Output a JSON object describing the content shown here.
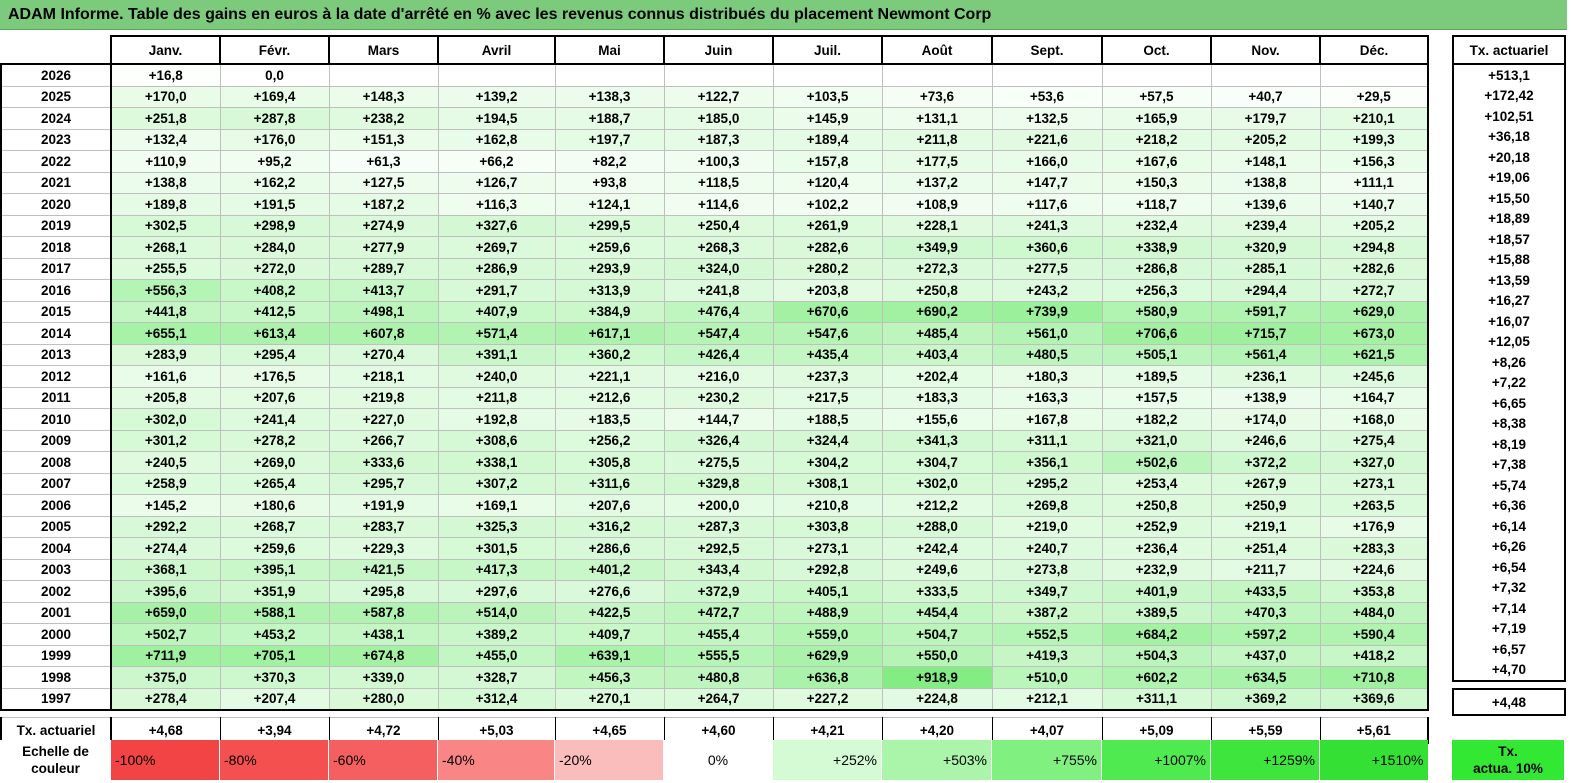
{
  "title": "ADAM Informe. Table des gains en euros à la date d'arrêté en % avec les revenus connus distribués du placement Newmont Corp",
  "months": [
    "Janv.",
    "Févr.",
    "Mars",
    "Avril",
    "Mai",
    "Juin",
    "Juil.",
    "Août",
    "Sept.",
    "Oct.",
    "Nov.",
    "Déc."
  ],
  "tx_header": "Tx. actuariel",
  "rows": [
    {
      "year": "2026",
      "cells": [
        "+16,8",
        "0,0",
        "",
        "",
        "",
        "",
        "",
        "",
        "",
        "",
        "",
        ""
      ],
      "tx": "+513,1"
    },
    {
      "year": "2025",
      "cells": [
        "+170,0",
        "+169,4",
        "+148,3",
        "+139,2",
        "+138,3",
        "+122,7",
        "+103,5",
        "+73,6",
        "+53,6",
        "+57,5",
        "+40,7",
        "+29,5"
      ],
      "tx": "+172,42"
    },
    {
      "year": "2024",
      "cells": [
        "+251,8",
        "+287,8",
        "+238,2",
        "+194,5",
        "+188,7",
        "+185,0",
        "+145,9",
        "+131,1",
        "+132,5",
        "+165,9",
        "+179,7",
        "+210,1"
      ],
      "tx": "+102,51"
    },
    {
      "year": "2023",
      "cells": [
        "+132,4",
        "+176,0",
        "+151,3",
        "+162,8",
        "+197,7",
        "+187,3",
        "+189,4",
        "+211,8",
        "+221,6",
        "+218,2",
        "+205,2",
        "+199,3"
      ],
      "tx": "+36,18"
    },
    {
      "year": "2022",
      "cells": [
        "+110,9",
        "+95,2",
        "+61,3",
        "+66,2",
        "+82,2",
        "+100,3",
        "+157,8",
        "+177,5",
        "+166,0",
        "+167,6",
        "+148,1",
        "+156,3"
      ],
      "tx": "+20,18"
    },
    {
      "year": "2021",
      "cells": [
        "+138,8",
        "+162,2",
        "+127,5",
        "+126,7",
        "+93,8",
        "+118,5",
        "+120,4",
        "+137,2",
        "+147,7",
        "+150,3",
        "+138,8",
        "+111,1"
      ],
      "tx": "+19,06"
    },
    {
      "year": "2020",
      "cells": [
        "+189,8",
        "+191,5",
        "+187,2",
        "+116,3",
        "+124,1",
        "+114,6",
        "+102,2",
        "+108,9",
        "+117,6",
        "+118,7",
        "+139,6",
        "+140,7"
      ],
      "tx": "+15,50"
    },
    {
      "year": "2019",
      "cells": [
        "+302,5",
        "+298,9",
        "+274,9",
        "+327,6",
        "+299,5",
        "+250,4",
        "+261,9",
        "+228,1",
        "+241,3",
        "+232,4",
        "+239,4",
        "+205,2"
      ],
      "tx": "+18,89"
    },
    {
      "year": "2018",
      "cells": [
        "+268,1",
        "+284,0",
        "+277,9",
        "+269,7",
        "+259,6",
        "+268,3",
        "+282,6",
        "+349,9",
        "+360,6",
        "+338,9",
        "+320,9",
        "+294,8"
      ],
      "tx": "+18,57"
    },
    {
      "year": "2017",
      "cells": [
        "+255,5",
        "+272,0",
        "+289,7",
        "+286,9",
        "+293,9",
        "+324,0",
        "+280,2",
        "+272,3",
        "+277,5",
        "+286,8",
        "+285,1",
        "+282,6"
      ],
      "tx": "+15,88"
    },
    {
      "year": "2016",
      "cells": [
        "+556,3",
        "+408,2",
        "+413,7",
        "+291,7",
        "+313,9",
        "+241,8",
        "+203,8",
        "+250,8",
        "+243,2",
        "+256,3",
        "+294,4",
        "+272,7"
      ],
      "tx": "+13,59"
    },
    {
      "year": "2015",
      "cells": [
        "+441,8",
        "+412,5",
        "+498,1",
        "+407,9",
        "+384,9",
        "+476,4",
        "+670,6",
        "+690,2",
        "+739,9",
        "+580,9",
        "+591,7",
        "+629,0"
      ],
      "tx": "+16,27"
    },
    {
      "year": "2014",
      "cells": [
        "+655,1",
        "+613,4",
        "+607,8",
        "+571,4",
        "+617,1",
        "+547,4",
        "+547,6",
        "+485,4",
        "+561,0",
        "+706,6",
        "+715,7",
        "+673,0"
      ],
      "tx": "+16,07"
    },
    {
      "year": "2013",
      "cells": [
        "+283,9",
        "+295,4",
        "+270,4",
        "+391,1",
        "+360,2",
        "+426,4",
        "+435,4",
        "+403,4",
        "+480,5",
        "+505,1",
        "+561,4",
        "+621,5"
      ],
      "tx": "+12,05"
    },
    {
      "year": "2012",
      "cells": [
        "+161,6",
        "+176,5",
        "+218,1",
        "+240,0",
        "+221,1",
        "+216,0",
        "+237,3",
        "+202,4",
        "+180,3",
        "+189,5",
        "+236,1",
        "+245,6"
      ],
      "tx": "+8,26"
    },
    {
      "year": "2011",
      "cells": [
        "+205,8",
        "+207,6",
        "+219,8",
        "+211,8",
        "+212,6",
        "+230,2",
        "+217,5",
        "+183,3",
        "+163,3",
        "+157,5",
        "+138,9",
        "+164,7"
      ],
      "tx": "+7,22"
    },
    {
      "year": "2010",
      "cells": [
        "+302,0",
        "+241,4",
        "+227,0",
        "+192,8",
        "+183,5",
        "+144,7",
        "+188,5",
        "+155,6",
        "+167,8",
        "+182,2",
        "+174,0",
        "+168,0"
      ],
      "tx": "+6,65"
    },
    {
      "year": "2009",
      "cells": [
        "+301,2",
        "+278,2",
        "+266,7",
        "+308,6",
        "+256,2",
        "+326,4",
        "+324,4",
        "+341,3",
        "+311,1",
        "+321,0",
        "+246,6",
        "+275,4"
      ],
      "tx": "+8,38"
    },
    {
      "year": "2008",
      "cells": [
        "+240,5",
        "+269,0",
        "+333,6",
        "+338,1",
        "+305,8",
        "+275,5",
        "+304,2",
        "+304,7",
        "+356,1",
        "+502,6",
        "+372,2",
        "+327,0"
      ],
      "tx": "+8,19"
    },
    {
      "year": "2007",
      "cells": [
        "+258,9",
        "+265,4",
        "+295,7",
        "+307,2",
        "+311,6",
        "+329,8",
        "+308,1",
        "+302,0",
        "+295,2",
        "+253,4",
        "+267,9",
        "+273,1"
      ],
      "tx": "+7,38"
    },
    {
      "year": "2006",
      "cells": [
        "+145,2",
        "+180,6",
        "+191,9",
        "+169,1",
        "+207,6",
        "+200,0",
        "+210,8",
        "+212,2",
        "+269,8",
        "+250,8",
        "+250,9",
        "+263,5"
      ],
      "tx": "+5,74"
    },
    {
      "year": "2005",
      "cells": [
        "+292,2",
        "+268,7",
        "+283,7",
        "+325,3",
        "+316,2",
        "+287,3",
        "+303,8",
        "+288,0",
        "+219,0",
        "+252,9",
        "+219,1",
        "+176,9"
      ],
      "tx": "+6,36"
    },
    {
      "year": "2004",
      "cells": [
        "+274,4",
        "+259,6",
        "+229,3",
        "+301,5",
        "+286,6",
        "+292,5",
        "+273,1",
        "+242,4",
        "+240,7",
        "+236,4",
        "+251,4",
        "+283,3"
      ],
      "tx": "+6,14"
    },
    {
      "year": "2003",
      "cells": [
        "+368,1",
        "+395,1",
        "+421,5",
        "+417,3",
        "+401,2",
        "+343,4",
        "+292,8",
        "+249,6",
        "+273,8",
        "+232,9",
        "+211,7",
        "+224,6"
      ],
      "tx": "+6,26"
    },
    {
      "year": "2002",
      "cells": [
        "+395,6",
        "+351,9",
        "+295,8",
        "+297,6",
        "+276,6",
        "+372,9",
        "+405,1",
        "+333,5",
        "+349,7",
        "+401,9",
        "+433,5",
        "+353,8"
      ],
      "tx": "+6,54"
    },
    {
      "year": "2001",
      "cells": [
        "+659,0",
        "+588,1",
        "+587,8",
        "+514,0",
        "+422,5",
        "+472,7",
        "+488,9",
        "+454,4",
        "+387,2",
        "+389,5",
        "+470,3",
        "+484,0"
      ],
      "tx": "+7,32"
    },
    {
      "year": "2000",
      "cells": [
        "+502,7",
        "+453,2",
        "+438,1",
        "+389,2",
        "+409,7",
        "+455,4",
        "+559,0",
        "+504,7",
        "+552,5",
        "+684,2",
        "+597,2",
        "+590,4"
      ],
      "tx": "+7,14"
    },
    {
      "year": "1999",
      "cells": [
        "+711,9",
        "+705,1",
        "+674,8",
        "+455,0",
        "+639,1",
        "+555,5",
        "+629,9",
        "+550,0",
        "+419,3",
        "+504,3",
        "+437,0",
        "+418,2"
      ],
      "tx": "+7,19"
    },
    {
      "year": "1998",
      "cells": [
        "+375,0",
        "+370,3",
        "+339,0",
        "+328,7",
        "+456,3",
        "+480,8",
        "+636,8",
        "+918,9",
        "+510,0",
        "+602,2",
        "+634,5",
        "+710,8"
      ],
      "tx": "+6,57"
    },
    {
      "year": "1997",
      "cells": [
        "+278,4",
        "+207,4",
        "+280,0",
        "+312,4",
        "+270,1",
        "+264,7",
        "+227,2",
        "+224,8",
        "+212,1",
        "+311,1",
        "+369,2",
        "+369,6"
      ],
      "tx": "+4,70"
    }
  ],
  "footer": {
    "label": "Tx. actuariel",
    "cells": [
      "+4,68",
      "+3,94",
      "+4,72",
      "+5,03",
      "+4,65",
      "+4,60",
      "+4,21",
      "+4,20",
      "+4,07",
      "+5,09",
      "+5,59",
      "+5,61"
    ],
    "tx": "+4,48"
  },
  "scale": {
    "label_line1": "Echelle de",
    "label_line2": "couleur",
    "steps": [
      {
        "text": "-100%",
        "color": "#f24444",
        "kind": "neg"
      },
      {
        "text": "-80%",
        "color": "#f45050",
        "kind": "neg"
      },
      {
        "text": "-60%",
        "color": "#f65f5f",
        "kind": "neg"
      },
      {
        "text": "-40%",
        "color": "#f98585",
        "kind": "neg"
      },
      {
        "text": "-20%",
        "color": "#fbbcbc",
        "kind": "neg"
      },
      {
        "text": "0%",
        "color": "#ffffff",
        "kind": "zero"
      },
      {
        "text": "+252%",
        "color": "#d4fbd4",
        "kind": "pos"
      },
      {
        "text": "+503%",
        "color": "#aaf5aa",
        "kind": "pos"
      },
      {
        "text": "+755%",
        "color": "#80f080",
        "kind": "pos"
      },
      {
        "text": "+1007%",
        "color": "#4fea4f",
        "kind": "pos"
      },
      {
        "text": "+1259%",
        "color": "#3de53d",
        "kind": "pos"
      },
      {
        "text": "+1510%",
        "color": "#33e033",
        "kind": "pos"
      }
    ],
    "tx_line1": "Tx.",
    "tx_line2": "actua. 10%"
  }
}
